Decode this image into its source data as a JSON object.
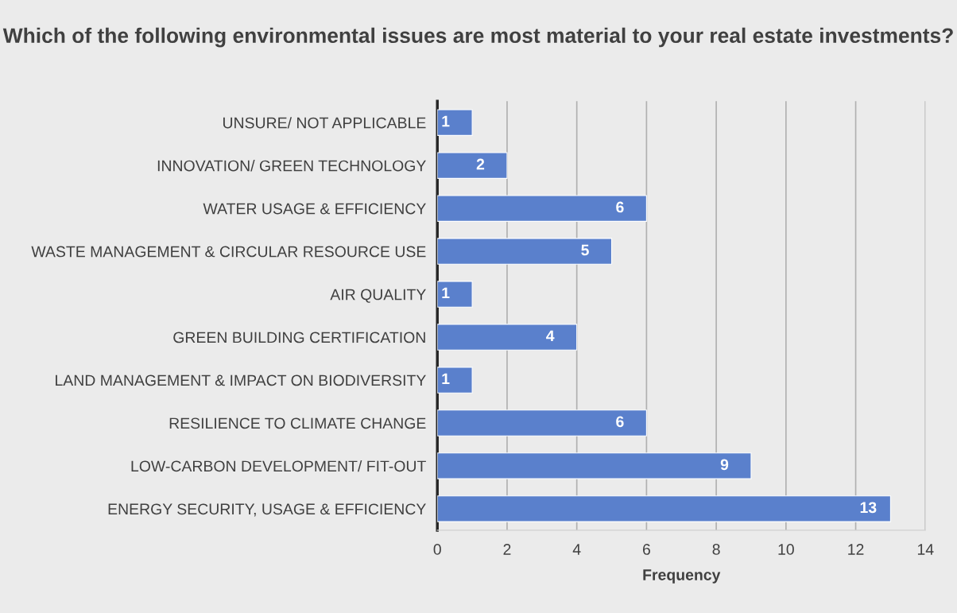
{
  "chart_data": {
    "type": "bar",
    "orientation": "horizontal",
    "title": "Which of the following environmental issues are most material to your real estate investments?",
    "xlabel": "Frequency",
    "categories": [
      "UNSURE/ NOT APPLICABLE",
      "INNOVATION/ GREEN TECHNOLOGY",
      "WATER USAGE & EFFICIENCY",
      "WASTE MANAGEMENT & CIRCULAR RESOURCE USE",
      "AIR QUALITY",
      "GREEN BUILDING CERTIFICATION",
      "LAND MANAGEMENT & IMPACT ON BIODIVERSITY",
      "RESILIENCE TO CLIMATE CHANGE",
      "LOW-CARBON DEVELOPMENT/ FIT-OUT",
      "ENERGY SECURITY, USAGE & EFFICIENCY"
    ],
    "values": [
      1,
      2,
      6,
      5,
      1,
      4,
      1,
      6,
      9,
      13
    ],
    "color": "#5a80cc",
    "xlim": [
      0,
      14
    ],
    "xticks": [
      0,
      2,
      4,
      6,
      8,
      10,
      12,
      14
    ],
    "grid": "x",
    "data_labels": true,
    "legend": false
  }
}
